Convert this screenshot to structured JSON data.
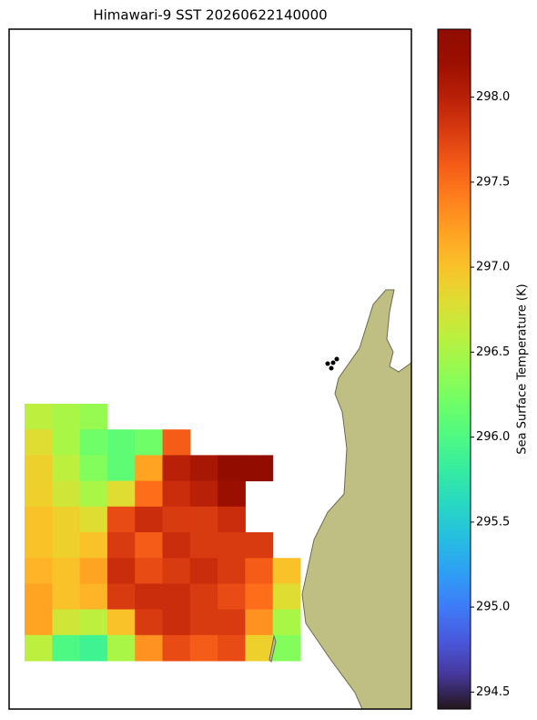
{
  "chart_data": {
    "type": "heatmap",
    "title": "Himawari-9 SST 20260622140000",
    "colorbar_label": "Sea Surface Temperature (K)",
    "colormap": "turbo",
    "clim": [
      294.4,
      298.4
    ],
    "cticks": [
      {
        "value": 294.5,
        "label": "294.5"
      },
      {
        "value": 295,
        "label": "295.0"
      },
      {
        "value": 295.5,
        "label": "295.5"
      },
      {
        "value": 296,
        "label": "296.0"
      },
      {
        "value": 296.5,
        "label": "296.5"
      },
      {
        "value": 297,
        "label": "297.0"
      },
      {
        "value": 297.5,
        "label": "297.5"
      },
      {
        "value": 298,
        "label": "298.0"
      }
    ],
    "values": [
      [
        296.6,
        296.5,
        296.4,
        null,
        null,
        null,
        null,
        null,
        null,
        null
      ],
      [
        296.8,
        296.5,
        296.2,
        296.1,
        296.2,
        297.6,
        null,
        null,
        null,
        null
      ],
      [
        296.9,
        296.6,
        296.3,
        296.1,
        297.2,
        298.0,
        298.1,
        298.3,
        298.3,
        null
      ],
      [
        296.9,
        296.7,
        296.5,
        296.8,
        297.5,
        297.9,
        298.0,
        298.2,
        null,
        null
      ],
      [
        297.0,
        296.9,
        296.8,
        297.7,
        297.9,
        297.8,
        297.8,
        297.9,
        null,
        null
      ],
      [
        297.0,
        296.9,
        297.0,
        297.8,
        297.6,
        297.9,
        297.8,
        297.8,
        297.8,
        null
      ],
      [
        297.1,
        297.0,
        297.2,
        297.9,
        297.7,
        297.8,
        297.9,
        297.8,
        297.6,
        297.0
      ],
      [
        297.2,
        297.0,
        297.1,
        297.8,
        297.9,
        297.9,
        297.8,
        297.7,
        297.5,
        296.8
      ],
      [
        297.2,
        296.7,
        296.6,
        297.0,
        297.8,
        297.9,
        297.8,
        297.8,
        297.3,
        296.5
      ],
      [
        296.6,
        296.0,
        295.9,
        296.5,
        297.3,
        297.7,
        297.6,
        297.7,
        296.9,
        296.3
      ]
    ]
  }
}
